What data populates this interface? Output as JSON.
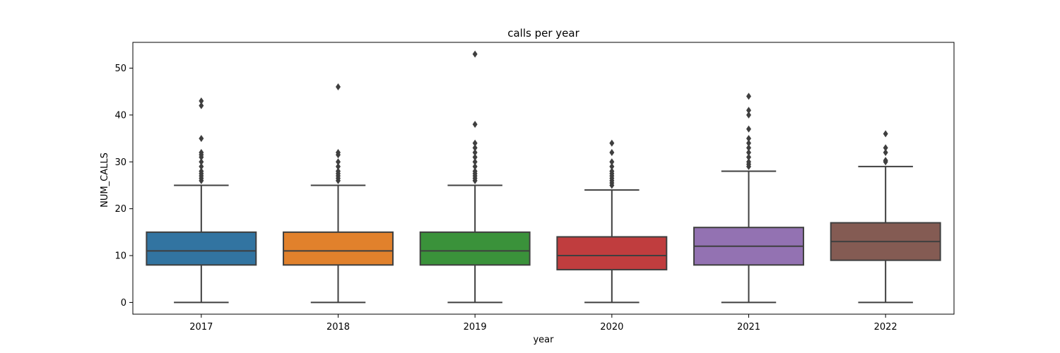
{
  "chart_data": {
    "type": "box",
    "title": "calls per year",
    "xlabel": "year",
    "ylabel": "NUM_CALLS",
    "ylim": [
      -2.5,
      55.5
    ],
    "yticks": [
      0,
      10,
      20,
      30,
      40,
      50
    ],
    "grid": false,
    "categories": [
      "2017",
      "2018",
      "2019",
      "2020",
      "2021",
      "2022"
    ],
    "boxes": [
      {
        "category": "2017",
        "color": "#3274a1",
        "whisker_low": 0,
        "q1": 8,
        "median": 11,
        "q3": 15,
        "whisker_high": 25,
        "outliers": [
          26,
          26.5,
          27,
          27.5,
          28,
          29,
          30,
          31,
          31.5,
          32,
          35,
          42,
          43
        ]
      },
      {
        "category": "2018",
        "color": "#e1812c",
        "whisker_low": 0,
        "q1": 8,
        "median": 11,
        "q3": 15,
        "whisker_high": 25,
        "outliers": [
          26,
          26.5,
          27,
          27.5,
          28,
          29,
          30,
          31.5,
          32,
          46
        ]
      },
      {
        "category": "2019",
        "color": "#3a923a",
        "whisker_low": 0,
        "q1": 8,
        "median": 11,
        "q3": 15,
        "whisker_high": 25,
        "outliers": [
          26,
          26.5,
          27,
          27.5,
          28,
          29,
          30,
          31,
          32,
          33,
          34,
          38,
          53
        ]
      },
      {
        "category": "2020",
        "color": "#c03d3e",
        "whisker_low": 0,
        "q1": 7,
        "median": 10,
        "q3": 14,
        "whisker_high": 24,
        "outliers": [
          25,
          25.5,
          26,
          26.5,
          27,
          27.5,
          28,
          29,
          30,
          32,
          34
        ]
      },
      {
        "category": "2021",
        "color": "#9372b2",
        "whisker_low": 0,
        "q1": 8,
        "median": 12,
        "q3": 16,
        "whisker_high": 28,
        "outliers": [
          29,
          29.5,
          30,
          31,
          32,
          33,
          34,
          35,
          37,
          40,
          41,
          44
        ]
      },
      {
        "category": "2022",
        "color": "#845b53",
        "whisker_low": 0,
        "q1": 9,
        "median": 13,
        "q3": 17,
        "whisker_high": 29,
        "outliers": [
          30,
          30.3,
          32,
          33,
          36
        ]
      }
    ]
  }
}
